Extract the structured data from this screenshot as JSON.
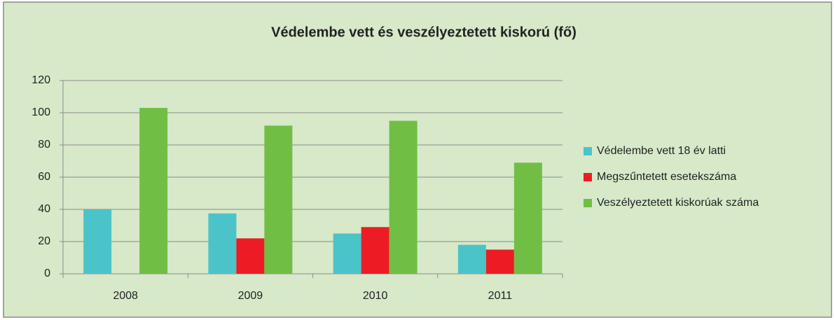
{
  "chart_data": {
    "type": "bar",
    "title": "Védelembe vett és veszélyeztetett kiskorú (fő)",
    "categories": [
      "2008",
      "2009",
      "2010",
      "2011"
    ],
    "series": [
      {
        "name": "Védelembe vett 18 év latti",
        "color": "#4bc4c9",
        "values": [
          40,
          37.5,
          25,
          18
        ]
      },
      {
        "name": "Megszűntetett esetekszáma",
        "color": "#ed1c24",
        "values": [
          null,
          22,
          29,
          15
        ]
      },
      {
        "name": "Veszélyeztetett kiskorúak száma",
        "color": "#70bf44",
        "values": [
          103,
          92,
          95,
          69
        ]
      }
    ],
    "ylim": [
      0,
      120
    ],
    "yticks": [
      0,
      20,
      40,
      60,
      80,
      100,
      120
    ],
    "grid": true,
    "legend": "right"
  }
}
